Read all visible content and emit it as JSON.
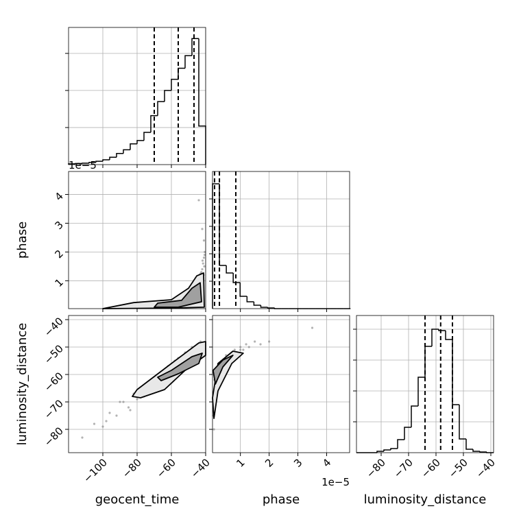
{
  "chart_data": [
    {
      "type": "histogram",
      "color": "#000000",
      "bins": [
        -120,
        -116,
        -112,
        -108,
        -104,
        -100,
        -96,
        -92,
        -88,
        -84,
        -80,
        -76,
        -72,
        -68,
        -64,
        -60,
        -56,
        -52,
        -48,
        -44,
        -40
      ],
      "counts": [
        0.02,
        0.03,
        0.04,
        0.06,
        0.09,
        0.13,
        0.2,
        0.3,
        0.4,
        0.56,
        0.65,
        0.87,
        1.32,
        1.7,
        2.0,
        2.3,
        2.6,
        2.94,
        3.4,
        1.04
      ],
      "quantiles": [
        -70,
        -56,
        -46.8
      ],
      "xlim": [
        -120,
        -40
      ],
      "ylim": [
        0,
        3.7
      ],
      "xticks": [
        {
          "value": -100,
          "label": "−100"
        },
        {
          "value": -80,
          "label": "−80"
        },
        {
          "value": -60,
          "label": "−60"
        },
        {
          "value": -40,
          "label": "−40"
        }
      ],
      "yticks": [
        1,
        2,
        3
      ],
      "grid": true
    },
    {
      "type": "scatter",
      "color": "#808080",
      "ylabel": "phase",
      "y_offset_text": "1e−5",
      "x": [
        -42,
        -41,
        -43,
        -44,
        -41.5,
        -40.5,
        -45,
        -46,
        -42.5,
        -41,
        -40.8,
        -43.5,
        -47,
        -50,
        -55,
        -44,
        -42,
        -41.2,
        -40.6,
        -45.5,
        -48,
        -52,
        -60,
        -70,
        -85,
        -43,
        -41.8,
        -46.5
      ],
      "y": [
        1.4,
        1.8,
        1.1,
        0.9,
        1.6,
        2.0,
        0.7,
        0.6,
        1.3,
        2.4,
        1.5,
        1.0,
        0.5,
        0.4,
        0.3,
        3.8,
        2.8,
        1.2,
        1.9,
        0.85,
        0.55,
        0.35,
        0.2,
        0.12,
        0.06,
        1.25,
        1.7,
        0.75
      ],
      "contours": [
        {
          "color": "#e8e8e8",
          "x": [
            -100,
            -82,
            -60,
            -50,
            -45.2,
            -41.2,
            -40.8,
            -60
          ],
          "y": [
            0.03,
            0.24,
            0.34,
            0.74,
            1.17,
            1.27,
            0.08,
            0.05
          ]
        },
        {
          "color": "#a0a0a0",
          "x": [
            -70,
            -68,
            -54,
            -48,
            -43.2,
            -42.4,
            -56
          ],
          "y": [
            0.08,
            0.22,
            0.32,
            0.74,
            0.93,
            0.27,
            0.08
          ]
        }
      ],
      "xlim": [
        -120,
        -40
      ],
      "ylim": [
        0.03,
        4.8
      ],
      "xticks": [
        {
          "value": -100,
          "label": "−100"
        },
        {
          "value": -80,
          "label": "−80"
        },
        {
          "value": -60,
          "label": "−60"
        },
        {
          "value": -40,
          "label": "−40"
        }
      ],
      "yticks": [
        1,
        2,
        3,
        4
      ],
      "grid": true
    },
    {
      "type": "histogram",
      "color": "#000000",
      "bins": [
        0.03,
        0.27,
        0.51,
        0.75,
        0.99,
        1.23,
        1.47,
        1.71,
        1.95,
        2.19,
        2.43,
        2.67,
        2.91,
        3.15,
        3.39,
        3.63,
        3.87,
        4.11,
        4.35,
        4.59,
        4.83
      ],
      "counts": [
        0.91,
        0.315,
        0.26,
        0.19,
        0.09,
        0.05,
        0.025,
        0.01,
        0.005,
        0,
        0,
        0,
        0,
        0,
        0,
        0,
        0,
        0,
        0,
        0
      ],
      "quantiles": [
        0.1,
        0.27,
        0.84
      ],
      "xlim": [
        0.03,
        4.8
      ],
      "ylim": [
        0,
        1
      ],
      "xticks": [
        1,
        2,
        3,
        4
      ],
      "yticks": [
        0.2,
        0.4,
        0.6,
        0.8
      ],
      "grid": true
    },
    {
      "type": "scatter",
      "color": "#808080",
      "xlabel": "geocent_time",
      "ylabel": "luminosity_distance",
      "x": [
        -112,
        -105,
        -100,
        -96,
        -92,
        -88,
        -85,
        -82,
        -80,
        -78,
        -75,
        -72,
        -70,
        -68,
        -65,
        -62,
        -60,
        -58,
        -55,
        -52,
        -50,
        -48,
        -45,
        -43,
        -41,
        -90,
        -76,
        -66,
        -56,
        -46,
        -70,
        -60,
        -84,
        -98
      ],
      "y": [
        -83,
        -78,
        -79,
        -74,
        -75,
        -70,
        -72,
        -67,
        -69,
        -65,
        -67,
        -62,
        -65,
        -60,
        -62,
        -57,
        -60,
        -55,
        -58,
        -52,
        -55,
        -50,
        -53,
        -48,
        -51,
        -70,
        -68,
        -59,
        -54,
        -54,
        -61,
        -62,
        -73,
        -77
      ],
      "contours": [
        {
          "color": "#e8e8e8",
          "x": [
            -82.8,
            -80,
            -60,
            -44,
            -40,
            -40,
            -52,
            -64,
            -78
          ],
          "y": [
            -68,
            -65.5,
            -56,
            -48.5,
            -48,
            -53,
            -58.5,
            -65.5,
            -68.5
          ]
        },
        {
          "color": "#a0a0a0",
          "x": [
            -68,
            -60,
            -48,
            -42,
            -44,
            -56,
            -66
          ],
          "y": [
            -61,
            -58.5,
            -53.5,
            -52.25,
            -56,
            -59.75,
            -62.25
          ]
        }
      ],
      "xlim": [
        -120,
        -40
      ],
      "ylim": [
        -88.5,
        -38.5
      ],
      "xticks": [
        {
          "value": -100,
          "label": "−100"
        },
        {
          "value": -80,
          "label": "−80"
        },
        {
          "value": -60,
          "label": "−60"
        },
        {
          "value": -40,
          "label": "−40"
        }
      ],
      "yticks": [
        {
          "value": -80,
          "label": "−80"
        },
        {
          "value": -70,
          "label": "−70"
        },
        {
          "value": -60,
          "label": "−60"
        },
        {
          "value": -50,
          "label": "−50"
        },
        {
          "value": -40,
          "label": "−40"
        }
      ],
      "grid": true
    },
    {
      "type": "scatter",
      "color": "#808080",
      "xlabel": "phase",
      "x_offset_text": "1e−5",
      "x": [
        0.1,
        0.2,
        0.3,
        0.4,
        0.5,
        0.6,
        0.7,
        0.8,
        0.9,
        1.0,
        1.1,
        1.2,
        1.3,
        1.5,
        1.7,
        2.0,
        0.15,
        0.25,
        0.35,
        0.45,
        0.55,
        0.65,
        0.8,
        1.0,
        3.5,
        0.05,
        0.08,
        0.12
      ],
      "y": [
        -62,
        -58,
        -56,
        -55,
        -53,
        -54,
        -52,
        -51,
        -52,
        -50,
        -51,
        -49,
        -50,
        -48,
        -49,
        -48,
        -66,
        -60,
        -58,
        -57,
        -55,
        -53,
        -53,
        -51,
        -43,
        -75,
        -80,
        -70
      ],
      "contours": [
        {
          "color": "#e8e8e8",
          "x": [
            0.03,
            0.22,
            0.74,
            1.1,
            0.7,
            0.22,
            0.08
          ],
          "y": [
            -68.5,
            -56,
            -51.5,
            -52.25,
            -56,
            -66,
            -76
          ]
        },
        {
          "color": "#a0a0a0",
          "x": [
            0.05,
            0.39,
            0.74,
            0.39,
            0.13
          ],
          "y": [
            -58.5,
            -54.75,
            -53,
            -57.25,
            -63.5
          ]
        }
      ],
      "xlim": [
        0.03,
        4.8
      ],
      "ylim": [
        -88.5,
        -38.5
      ],
      "xticks": [
        1,
        2,
        3,
        4
      ],
      "yticks": [
        {
          "value": -80,
          "label": "−80"
        },
        {
          "value": -70,
          "label": "−70"
        },
        {
          "value": -60,
          "label": "−60"
        },
        {
          "value": -50,
          "label": "−50"
        },
        {
          "value": -40,
          "label": "−40"
        }
      ],
      "grid": true
    },
    {
      "type": "histogram",
      "color": "#000000",
      "xlabel": "luminosity_distance",
      "bins": [
        -89,
        -86.5,
        -84,
        -81.5,
        -79,
        -76.5,
        -74,
        -71.5,
        -69,
        -66.5,
        -64,
        -61.5,
        -59,
        -56.5,
        -54,
        -51.5,
        -49,
        -46.5,
        -44,
        -41.5,
        -39
      ],
      "counts": [
        0,
        0,
        0,
        0.01,
        0.02,
        0.03,
        0.095,
        0.185,
        0.34,
        0.55,
        0.775,
        0.9,
        0.89,
        0.825,
        0.35,
        0.1,
        0.025,
        0.01,
        0.005,
        0
      ],
      "quantiles": [
        -64,
        -58.3,
        -54
      ],
      "xlim": [
        -89,
        -39
      ],
      "ylim": [
        0,
        1
      ],
      "xticks": [
        {
          "value": -80,
          "label": "−80"
        },
        {
          "value": -70,
          "label": "−70"
        },
        {
          "value": -60,
          "label": "−60"
        },
        {
          "value": -50,
          "label": "−50"
        },
        {
          "value": -40,
          "label": "−40"
        }
      ],
      "yticks": [
        0.225,
        0.45,
        0.675,
        0.9
      ],
      "grid": true
    }
  ]
}
